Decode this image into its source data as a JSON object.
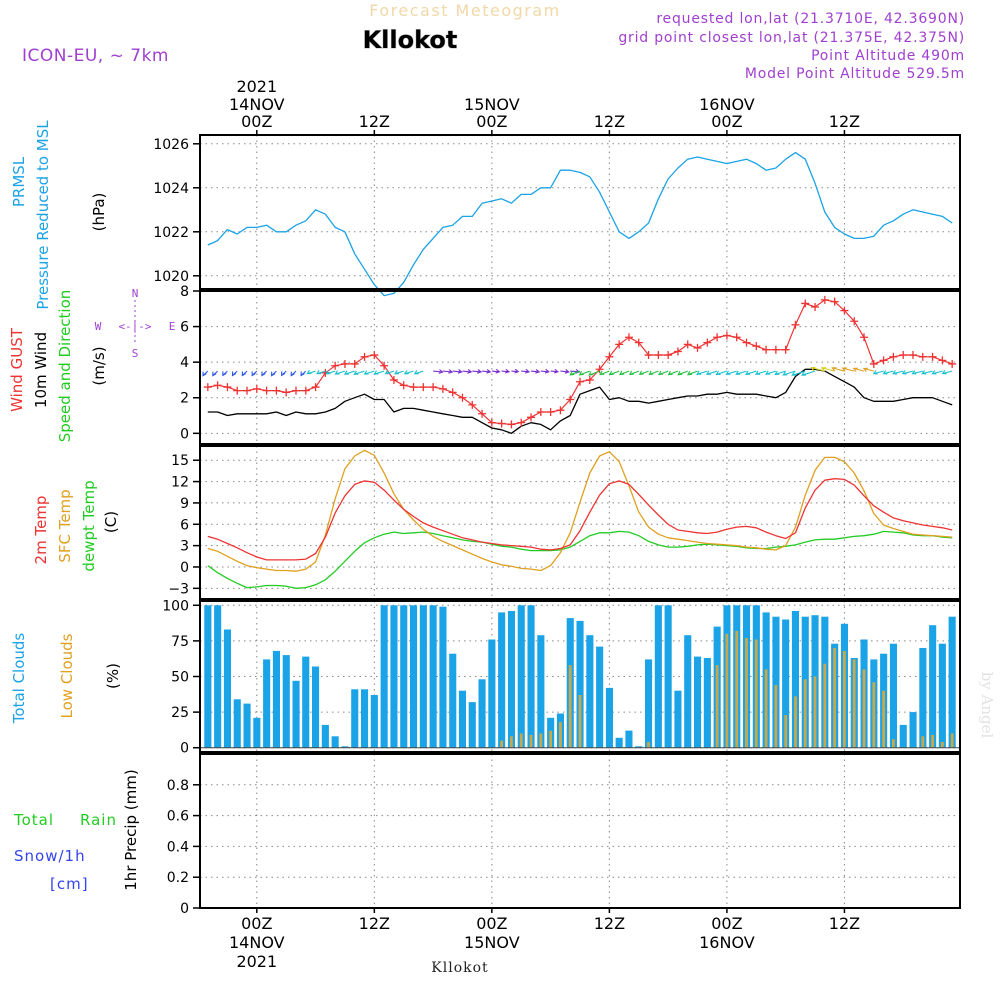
{
  "header": {
    "product": "Forecast Meteogram",
    "station": "Kllokot",
    "model": "ICON-EU, ~ 7km",
    "requested": "requested lon,lat (21.3710E, 42.3690N)",
    "grid_point": "grid point closest lon,lat (21.375E, 42.375N)",
    "point_altitude": "Point Altitude 490m",
    "model_altitude": "Model Point Altitude 529.5m",
    "watermark": "by Angel",
    "footer_station": "Kllokot"
  },
  "colors": {
    "pressure": "#1aa3e6",
    "gust": "#ee3333",
    "wind": "#000000",
    "temp2m": "#ee3333",
    "sfc_temp": "#e0a020",
    "dewpoint": "#22cc22",
    "total_clouds": "#1aa3e6",
    "low_clouds": "#c8a84a",
    "rain": "#22cc22",
    "snow": "#3344ee",
    "purple": "#a040d0"
  },
  "time_axis": {
    "top_labels": [
      {
        "hour": 0,
        "day": "14NOV",
        "zulu": "00Z",
        "year": "2021"
      },
      {
        "hour": 12,
        "zulu": "12Z"
      },
      {
        "hour": 24,
        "day": "15NOV",
        "zulu": "00Z"
      },
      {
        "hour": 36,
        "zulu": "12Z"
      },
      {
        "hour": 48,
        "day": "16NOV",
        "zulu": "00Z"
      },
      {
        "hour": 60,
        "zulu": "12Z"
      }
    ],
    "bottom_labels": [
      {
        "hour": 0,
        "day": "14NOV",
        "zulu": "00Z",
        "year": "2021"
      },
      {
        "hour": 12,
        "zulu": "12Z"
      },
      {
        "hour": 24,
        "day": "15NOV",
        "zulu": "00Z"
      },
      {
        "hour": 36,
        "zulu": "12Z"
      },
      {
        "hour": 48,
        "day": "16NOV",
        "zulu": "00Z"
      },
      {
        "hour": 60,
        "zulu": "12Z"
      }
    ]
  },
  "chart_data": [
    {
      "type": "line",
      "panel": "pressure",
      "ylabel_lines": [
        "PRMSL",
        "Pressure Reduced to MSL",
        "(hPa)"
      ],
      "yticks": [
        1020,
        1022,
        1024,
        1026
      ],
      "ylim": [
        1019.4,
        1026.4
      ],
      "x": [
        -5,
        -4,
        -3,
        -2,
        -1,
        0,
        1,
        2,
        3,
        4,
        5,
        6,
        7,
        8,
        9,
        10,
        11,
        12,
        13,
        14,
        15,
        16,
        17,
        18,
        19,
        20,
        21,
        22,
        23,
        24,
        25,
        26,
        27,
        28,
        29,
        30,
        31,
        32,
        33,
        34,
        35,
        36,
        37,
        38,
        39,
        40,
        41,
        42,
        43,
        44,
        45,
        46,
        47,
        48,
        49,
        50,
        51,
        52,
        53,
        54,
        55,
        56,
        57,
        58,
        59,
        60,
        61,
        62,
        63,
        64,
        65,
        66,
        67,
        68,
        69,
        70,
        71
      ],
      "series": [
        {
          "name": "PRMSL",
          "values": [
            1021.4,
            1021.6,
            1022.1,
            1021.9,
            1022.2,
            1022.2,
            1022.3,
            1022.0,
            1022.0,
            1022.3,
            1022.5,
            1023.0,
            1022.8,
            1022.2,
            1022.0,
            1021.0,
            1020.3,
            1019.6,
            1019.1,
            1019.2,
            1019.7,
            1020.5,
            1021.2,
            1021.7,
            1022.2,
            1022.3,
            1022.7,
            1022.7,
            1023.3,
            1023.4,
            1023.5,
            1023.3,
            1023.7,
            1023.7,
            1024.0,
            1024.0,
            1024.8,
            1024.8,
            1024.7,
            1024.5,
            1023.8,
            1022.9,
            1022.0,
            1021.7,
            1022.0,
            1022.4,
            1023.5,
            1024.4,
            1024.9,
            1025.3,
            1025.4,
            1025.3,
            1025.2,
            1025.1,
            1025.2,
            1025.3,
            1025.1,
            1024.8,
            1024.9,
            1025.3,
            1025.6,
            1025.3,
            1024.2,
            1022.9,
            1022.2,
            1021.9,
            1021.7,
            1021.7,
            1021.8,
            1022.3,
            1022.5,
            1022.8,
            1023.0,
            1022.9,
            1022.8,
            1022.7,
            1022.4
          ]
        }
      ]
    },
    {
      "type": "line",
      "panel": "wind",
      "ylabel_lines": [
        "Wind GUST",
        "10m Wind",
        "Speed and Direction",
        "(m/s)"
      ],
      "compass": {
        "n": "N",
        "e": "E",
        "s": "S",
        "w": "W",
        "center": "<-|->"
      },
      "yticks": [
        0,
        2,
        4,
        6,
        8
      ],
      "ylim": [
        -0.6,
        8.0
      ],
      "x": [
        -5,
        -4,
        -3,
        -2,
        -1,
        0,
        1,
        2,
        3,
        4,
        5,
        6,
        7,
        8,
        9,
        10,
        11,
        12,
        13,
        14,
        15,
        16,
        17,
        18,
        19,
        20,
        21,
        22,
        23,
        24,
        25,
        26,
        27,
        28,
        29,
        30,
        31,
        32,
        33,
        34,
        35,
        36,
        37,
        38,
        39,
        40,
        41,
        42,
        43,
        44,
        45,
        46,
        47,
        48,
        49,
        50,
        51,
        52,
        53,
        54,
        55,
        56,
        57,
        58,
        59,
        60,
        61,
        62,
        63,
        64,
        65,
        66,
        67,
        68,
        69,
        70,
        71
      ],
      "series": [
        {
          "name": "Wind GUST",
          "values": [
            2.6,
            2.7,
            2.6,
            2.4,
            2.4,
            2.5,
            2.4,
            2.4,
            2.3,
            2.4,
            2.4,
            2.6,
            3.4,
            3.8,
            3.9,
            3.9,
            4.3,
            4.4,
            3.8,
            3.0,
            2.7,
            2.6,
            2.6,
            2.6,
            2.5,
            2.3,
            2.0,
            1.6,
            1.1,
            0.6,
            0.55,
            0.5,
            0.6,
            0.9,
            1.2,
            1.2,
            1.3,
            1.9,
            2.9,
            3.0,
            3.6,
            4.3,
            5.0,
            5.4,
            5.1,
            4.4,
            4.4,
            4.4,
            4.6,
            5.0,
            4.8,
            5.1,
            5.4,
            5.5,
            5.4,
            5.1,
            4.9,
            4.7,
            4.7,
            4.7,
            6.1,
            7.3,
            7.1,
            7.5,
            7.4,
            6.9,
            6.3,
            5.4,
            3.9,
            4.1,
            4.3,
            4.4,
            4.4,
            4.3,
            4.3,
            4.1,
            3.9
          ]
        },
        {
          "name": "10m Wind",
          "values": [
            1.2,
            1.2,
            1.0,
            1.1,
            1.1,
            1.1,
            1.1,
            1.2,
            1.0,
            1.2,
            1.1,
            1.1,
            1.2,
            1.4,
            1.8,
            2.0,
            2.2,
            1.9,
            1.9,
            1.2,
            1.4,
            1.4,
            1.3,
            1.2,
            1.1,
            1.0,
            0.9,
            0.9,
            0.6,
            0.3,
            0.2,
            0.0,
            0.4,
            0.6,
            0.5,
            0.2,
            0.7,
            1.0,
            2.2,
            2.4,
            2.6,
            1.9,
            2.0,
            1.8,
            1.8,
            1.7,
            1.8,
            1.9,
            2.0,
            2.1,
            2.1,
            2.2,
            2.2,
            2.3,
            2.2,
            2.2,
            2.2,
            2.1,
            2.0,
            2.3,
            3.2,
            3.6,
            3.6,
            3.5,
            3.2,
            2.9,
            2.6,
            2.0,
            1.8,
            1.8,
            1.8,
            1.9,
            2.0,
            2.0,
            2.0,
            1.8,
            1.6
          ]
        }
      ],
      "arrow_hours": [
        -5,
        -4,
        -3,
        -2,
        -1,
        0,
        1,
        2,
        3,
        4,
        5,
        6,
        7,
        8,
        9,
        10,
        11,
        12,
        13,
        14,
        15,
        16,
        17,
        18,
        19,
        20,
        21,
        22,
        23,
        24,
        25,
        26,
        27,
        28,
        29,
        30,
        31,
        32,
        33,
        34,
        35,
        36,
        37,
        38,
        39,
        40,
        41,
        42,
        43,
        44,
        45,
        46,
        47,
        48,
        49,
        50,
        51,
        52,
        53,
        54,
        55,
        56,
        57,
        58,
        59,
        60,
        61,
        62,
        63,
        64,
        65,
        66,
        67,
        68,
        69,
        70,
        71
      ]
    },
    {
      "type": "line",
      "panel": "temperature",
      "ylabel_lines": [
        "2m Temp",
        "SFC Temp",
        "dewpt Temp",
        "(C)"
      ],
      "yticks": [
        -3,
        0,
        3,
        6,
        9,
        12,
        15
      ],
      "ylim": [
        -4.5,
        17.0
      ],
      "x": [
        -5,
        -4,
        -3,
        -2,
        -1,
        0,
        1,
        2,
        3,
        4,
        5,
        6,
        7,
        8,
        9,
        10,
        11,
        12,
        13,
        14,
        15,
        16,
        17,
        18,
        19,
        20,
        21,
        22,
        23,
        24,
        25,
        26,
        27,
        28,
        29,
        30,
        31,
        32,
        33,
        34,
        35,
        36,
        37,
        38,
        39,
        40,
        41,
        42,
        43,
        44,
        45,
        46,
        47,
        48,
        49,
        50,
        51,
        52,
        53,
        54,
        55,
        56,
        57,
        58,
        59,
        60,
        61,
        62,
        63,
        64,
        65,
        66,
        67,
        68,
        69,
        70,
        71
      ],
      "series": [
        {
          "name": "2m Temp",
          "values": [
            4.3,
            3.9,
            3.3,
            2.7,
            2.0,
            1.4,
            1.0,
            1.0,
            1.0,
            1.0,
            1.1,
            1.9,
            4.2,
            7.6,
            10.0,
            11.6,
            12.1,
            11.9,
            10.8,
            9.4,
            8.1,
            7.1,
            6.2,
            5.6,
            5.1,
            4.6,
            4.1,
            3.8,
            3.5,
            3.3,
            3.1,
            3.0,
            2.9,
            2.8,
            2.5,
            2.4,
            2.6,
            3.1,
            5.1,
            7.7,
            10.1,
            11.7,
            12.1,
            11.6,
            10.2,
            8.7,
            7.3,
            6.0,
            5.2,
            5.0,
            4.8,
            4.7,
            4.9,
            5.3,
            5.6,
            5.7,
            5.5,
            4.9,
            4.4,
            4.0,
            4.8,
            8.3,
            10.8,
            12.2,
            12.4,
            12.3,
            11.5,
            10.0,
            8.6,
            7.7,
            6.9,
            6.5,
            6.2,
            5.9,
            5.7,
            5.5,
            5.2
          ]
        },
        {
          "name": "SFC Temp",
          "values": [
            2.6,
            2.2,
            1.5,
            0.8,
            0.2,
            -0.1,
            -0.3,
            -0.5,
            -0.5,
            -0.6,
            -0.3,
            0.7,
            4.5,
            9.6,
            13.8,
            15.6,
            16.4,
            15.7,
            13.2,
            10.3,
            8.1,
            6.6,
            5.3,
            4.3,
            3.6,
            3.0,
            2.4,
            1.8,
            1.2,
            0.7,
            0.3,
            0.1,
            -0.2,
            -0.3,
            -0.5,
            0.2,
            2.0,
            4.8,
            9.1,
            13.2,
            15.6,
            16.2,
            14.8,
            11.4,
            7.7,
            5.6,
            4.6,
            4.1,
            3.9,
            3.7,
            3.5,
            3.3,
            3.2,
            3.1,
            3.0,
            2.8,
            2.7,
            2.5,
            2.4,
            3.0,
            5.6,
            10.1,
            13.6,
            15.4,
            15.4,
            14.8,
            13.2,
            10.7,
            7.5,
            5.9,
            5.4,
            5.0,
            4.6,
            4.5,
            4.4,
            4.3,
            4.2
          ]
        },
        {
          "name": "dewpt Temp",
          "values": [
            0.2,
            -0.8,
            -1.6,
            -2.3,
            -2.9,
            -2.8,
            -2.6,
            -2.6,
            -2.7,
            -3.0,
            -2.9,
            -2.5,
            -1.8,
            -0.6,
            0.8,
            2.2,
            3.4,
            4.1,
            4.6,
            4.9,
            4.7,
            4.8,
            4.9,
            4.7,
            4.4,
            4.1,
            3.8,
            3.6,
            3.5,
            3.2,
            2.9,
            2.8,
            2.5,
            2.3,
            2.3,
            2.3,
            2.4,
            2.8,
            3.6,
            4.4,
            4.8,
            4.8,
            5.0,
            4.9,
            4.4,
            3.6,
            3.1,
            2.8,
            2.8,
            2.9,
            3.1,
            3.2,
            3.1,
            3.0,
            2.9,
            2.7,
            2.6,
            2.6,
            2.8,
            2.9,
            3.1,
            3.5,
            3.8,
            3.9,
            3.9,
            4.1,
            4.3,
            4.4,
            4.6,
            5.0,
            4.9,
            4.8,
            4.5,
            4.4,
            4.4,
            4.2,
            4.1
          ]
        }
      ]
    },
    {
      "type": "bar",
      "panel": "clouds",
      "ylabel_lines": [
        "Total Clouds",
        "Low Clouds",
        "(%)"
      ],
      "yticks": [
        0,
        25,
        50,
        75,
        100
      ],
      "ylim": [
        -3,
        103
      ],
      "x": [
        -5,
        -4,
        -3,
        -2,
        -1,
        0,
        1,
        2,
        3,
        4,
        5,
        6,
        7,
        8,
        9,
        10,
        11,
        12,
        13,
        14,
        15,
        16,
        17,
        18,
        19,
        20,
        21,
        22,
        23,
        24,
        25,
        26,
        27,
        28,
        29,
        30,
        31,
        32,
        33,
        34,
        35,
        36,
        37,
        38,
        39,
        40,
        41,
        42,
        43,
        44,
        45,
        46,
        47,
        48,
        49,
        50,
        51,
        52,
        53,
        54,
        55,
        56,
        57,
        58,
        59,
        60,
        61,
        62,
        63,
        64,
        65,
        66,
        67,
        68,
        69,
        70,
        71
      ],
      "series": [
        {
          "name": "Total Clouds",
          "values": [
            100,
            100,
            83,
            34,
            31,
            21,
            62,
            68,
            65,
            47,
            64,
            57,
            16,
            8,
            1,
            41,
            41,
            37,
            100,
            100,
            100,
            100,
            100,
            100,
            99,
            66,
            40,
            32,
            48,
            76,
            95,
            96,
            100,
            100,
            79,
            21,
            24,
            91,
            89,
            79,
            71,
            42,
            7,
            12,
            1,
            62,
            100,
            100,
            40,
            79,
            64,
            63,
            85,
            100,
            100,
            100,
            100,
            95,
            92,
            90,
            96,
            92,
            93,
            92,
            73,
            87,
            63,
            76,
            62,
            66,
            73,
            16,
            25,
            70,
            86,
            73,
            92
          ]
        },
        {
          "name": "Low Clouds",
          "values": [
            0,
            0,
            0,
            0,
            0,
            0,
            0,
            0,
            0,
            0,
            0,
            0,
            0,
            0,
            0,
            0,
            0,
            0,
            0,
            0,
            0,
            0,
            0,
            0,
            0,
            0,
            0,
            0,
            0,
            0,
            5,
            8,
            10,
            9,
            10,
            12,
            18,
            58,
            37,
            0,
            0,
            0,
            0,
            0,
            0,
            4,
            0,
            0,
            0,
            0,
            0,
            0,
            58,
            80,
            82,
            77,
            76,
            55,
            44,
            23,
            36,
            48,
            50,
            59,
            70,
            68,
            62,
            55,
            46,
            40,
            6,
            0,
            0,
            8,
            9,
            4,
            10
          ]
        }
      ]
    },
    {
      "type": "bar",
      "panel": "precipitation",
      "ylabel_lines": [
        "1hr Precip (mm)"
      ],
      "left_labels": {
        "total": "Total",
        "rain": "Rain",
        "snow": "Snow/1h",
        "unit": "[cm]"
      },
      "yticks": [
        0,
        0.2,
        0.4,
        0.6,
        0.8
      ],
      "tick_labels": [
        "0",
        "0.2",
        "0.4",
        "0.6",
        "0.8"
      ],
      "ylim": [
        0,
        1.0
      ],
      "series": [
        {
          "name": "Total Rain",
          "values": []
        },
        {
          "name": "Snow/1h",
          "values": []
        }
      ]
    }
  ]
}
